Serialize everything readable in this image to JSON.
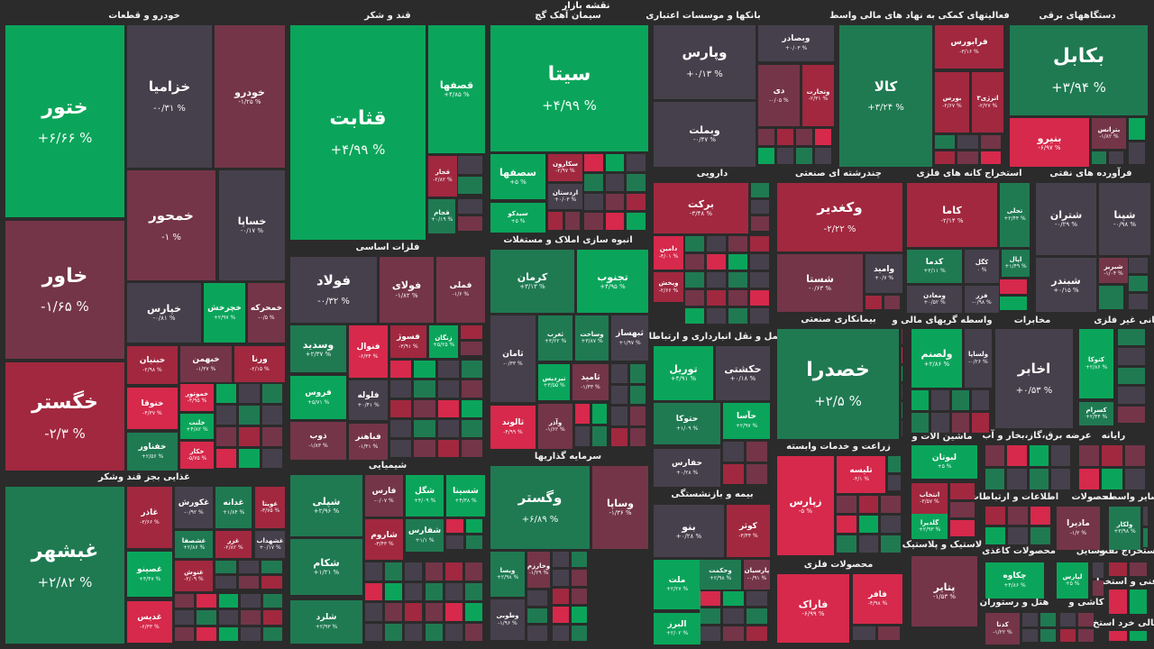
{
  "header": {
    "title": "نقشه بازار"
  },
  "colors": {
    "G": "#0aa55b",
    "g": "#1f7a52",
    "n": "#46404c",
    "m": "#743548",
    "r": "#a1283f",
    "R": "#d6294b"
  },
  "sectors": [
    "خودرو و قطعات",
    "قند و شکر",
    "سیمان آهک گچ",
    "بانکها و موسسات اعتباری",
    "فعالیتهای کمکی به نهاد های مالی واسط",
    "دستگاههای برقی",
    "فلزات اساسی",
    "انبوه سازی املاک و مستغلات",
    "دارویی",
    "چندرشته ای صنعتی",
    "استخراج کانه های فلزی",
    "فرآورده های نفتی",
    "حمل و نقل انبارداری و ارتباطات",
    "بیمانکاری صنعتی",
    "واسطه گریهای مالی و",
    "مخابرات",
    "کانی غیر فلزی",
    "زراعت و خدمات وابسته",
    "ماشین آلات و",
    "عرضه برق،گاز،بخار و آب",
    "رایانه",
    "بیمه و بازنشستگی",
    "اطلاعات و ارتباطات",
    "محصولات",
    "سایر واسطه",
    "محصولات فلزی",
    "لاستیک و پلاستیک",
    "محصولات کاغذی",
    "وسایل",
    "استخراج نفت",
    "فنی و استخرا",
    "هتل و رستوران",
    "کاشی و",
    "فعالی خرد استخ",
    "غذایی بجز قند وشکر",
    "شیمیایی",
    "سرمایه گذاریها"
  ],
  "tiles": [
    {
      "symbol": "ختور",
      "change": "+۶/۶۶ %",
      "c": "G"
    },
    {
      "symbol": "خزامیا",
      "change": "-۰/۳۱ %",
      "c": "n"
    },
    {
      "symbol": "خودرو",
      "change": "-۱/۲۵ %",
      "c": "m"
    },
    {
      "symbol": "خاور",
      "change": "-۱/۶۵ %",
      "c": "m"
    },
    {
      "symbol": "خمحور",
      "change": "-۱ %",
      "c": "m"
    },
    {
      "symbol": "خساپا",
      "change": "-۰/۱۷ %",
      "c": "n"
    },
    {
      "symbol": "خگستر",
      "change": "-۲/۳ %",
      "c": "r"
    },
    {
      "symbol": "خپارس",
      "change": "-۰/۸۱ %",
      "c": "n"
    },
    {
      "symbol": "خچرخش",
      "change": "+۲/۹۷ %",
      "c": "G"
    },
    {
      "symbol": "خمحرکه",
      "change": "-۰/۵ %",
      "c": "m"
    },
    {
      "symbol": "خبنیان",
      "change": "-۲/۹۸ %",
      "c": "r"
    },
    {
      "symbol": "خبهمن",
      "change": "-۱/۳۷ %",
      "c": "m"
    },
    {
      "symbol": "ورنا",
      "change": "-۲/۱۵ %",
      "c": "r"
    },
    {
      "symbol": "ختوقا",
      "change": "-۴/۳۷ %",
      "c": "R"
    },
    {
      "symbol": "خموتور",
      "change": "-۴/۹۵ %",
      "c": "R"
    },
    {
      "symbol": "خلنت",
      "change": "+۴/۸۲ %",
      "c": "G"
    },
    {
      "symbol": "خکار",
      "change": "-۵/۷۵ %",
      "c": "R"
    },
    {
      "symbol": "خفناور",
      "change": "+۲/۵۶ %",
      "c": "g"
    },
    {
      "symbol": "غبشهر",
      "change": "+۲/۸۲ %",
      "c": "g"
    },
    {
      "symbol": "غاذر",
      "change": "-۳/۶۶ %",
      "c": "r"
    },
    {
      "symbol": "غکورش",
      "change": "-۰/۹۲ %",
      "c": "n"
    },
    {
      "symbol": "غدانه",
      "change": "+۱/۸۴ %",
      "c": "g"
    },
    {
      "symbol": "غویتا",
      "change": "-۳/۷۵ %",
      "c": "r"
    },
    {
      "symbol": "غشصفا",
      "change": "+۲/۸۶ %",
      "c": "g"
    },
    {
      "symbol": "غزر",
      "change": "-۲/۸۲ %",
      "c": "r"
    },
    {
      "symbol": "غشهداب",
      "change": "+۰/۱۷ %",
      "c": "n"
    },
    {
      "symbol": "غصینو",
      "change": "+۴/۴۷ %",
      "c": "G"
    },
    {
      "symbol": "غنوش",
      "change": "-۲/۰۹ %",
      "c": "r"
    },
    {
      "symbol": "غدیس",
      "change": "-۶/۳۳ %",
      "c": "R"
    },
    {
      "symbol": "قثابت",
      "change": "+۴/۹۹ %",
      "c": "G"
    },
    {
      "symbol": "قصفها",
      "change": "+۴/۸۵ %",
      "c": "G"
    },
    {
      "symbol": "قجار",
      "change": "-۲/۸۲ %",
      "c": "r"
    },
    {
      "symbol": "قجام",
      "change": "+۰/۱۹ %",
      "c": "g"
    },
    {
      "symbol": "فولاد",
      "change": "-۰/۳۲ %",
      "c": "n"
    },
    {
      "symbol": "فولای",
      "change": "-۱/۸۲ %",
      "c": "m"
    },
    {
      "symbol": "فملی",
      "change": "-۱/۶ %",
      "c": "m"
    },
    {
      "symbol": "وسدید",
      "change": "+۲/۳۷ %",
      "c": "g"
    },
    {
      "symbol": "فنوال",
      "change": "-۶/۳۴ %",
      "c": "R"
    },
    {
      "symbol": "فسوژ",
      "change": "-۳/۹۱ %",
      "c": "r"
    },
    {
      "symbol": "زنگان",
      "change": "+۵/۲۵ %",
      "c": "G"
    },
    {
      "symbol": "فروس",
      "change": "+۵/۷۱ %",
      "c": "G"
    },
    {
      "symbol": "فلوله",
      "change": "+۰/۴۱ %",
      "c": "n"
    },
    {
      "symbol": "ذوب",
      "change": "-۱/۸۳ %",
      "c": "m"
    },
    {
      "symbol": "فباهنر",
      "change": "-۱/۴۱ %",
      "c": "m"
    },
    {
      "symbol": "شپلی",
      "change": "+۲/۹۶ %",
      "c": "g"
    },
    {
      "symbol": "فارس",
      "change": "-۰/۰۷ %",
      "c": "m"
    },
    {
      "symbol": "شگل",
      "change": "+۴/۰۹ %",
      "c": "G"
    },
    {
      "symbol": "شسینا",
      "change": "+۴/۳۸ %",
      "c": "G"
    },
    {
      "symbol": "شاروم",
      "change": "-۳/۴۳ %",
      "c": "r"
    },
    {
      "symbol": "شفارس",
      "change": "+۱/۱ %",
      "c": "g"
    },
    {
      "symbol": "شکام",
      "change": "+۱/۲۱ %",
      "c": "g"
    },
    {
      "symbol": "شلرد",
      "change": "+۲/۹۳ %",
      "c": "g"
    },
    {
      "symbol": "سیتا",
      "change": "+۴/۹۹ %",
      "c": "G"
    },
    {
      "symbol": "سصفها",
      "change": "+۵ %",
      "c": "G"
    },
    {
      "symbol": "سکارون",
      "change": "-۲/۹۷ %",
      "c": "r"
    },
    {
      "symbol": "اردستان",
      "change": "+۰/۰۳ %",
      "c": "n"
    },
    {
      "symbol": "سیدکو",
      "change": "+۵ %",
      "c": "G"
    },
    {
      "symbol": "کرمان",
      "change": "+۳/۱۳ %",
      "c": "g"
    },
    {
      "symbol": "تجنوب",
      "change": "+۴/۹۵ %",
      "c": "G"
    },
    {
      "symbol": "ثامان",
      "change": "-۰/۳۳ %",
      "c": "n"
    },
    {
      "symbol": "ثغرب",
      "change": "+۳/۲۲ %",
      "c": "g"
    },
    {
      "symbol": "وساخت",
      "change": "+۳/۸۷ %",
      "c": "g"
    },
    {
      "symbol": "ثبهساز",
      "change": "+۱/۹۷ %",
      "c": "n"
    },
    {
      "symbol": "تیردیس",
      "change": "+۳/۵۵ %",
      "c": "G"
    },
    {
      "symbol": "ثامید",
      "change": "-۱/۳۳ %",
      "c": "m"
    },
    {
      "symbol": "ثالوند",
      "change": "-۴/۹۹ %",
      "c": "R"
    },
    {
      "symbol": "وآذر",
      "change": "-۱/۶۲ %",
      "c": "m"
    },
    {
      "symbol": "وگستر",
      "change": "+۶/۸۹ %",
      "c": "g"
    },
    {
      "symbol": "وساپا",
      "change": "-۱/۳۶ %",
      "c": "m"
    },
    {
      "symbol": "ویسا",
      "change": "+۲/۹۸ %",
      "c": "g"
    },
    {
      "symbol": "وخارزم",
      "change": "-۱/۲۹ %",
      "c": "m"
    },
    {
      "symbol": "وطوبی",
      "change": "-۱/۹۶ %",
      "c": "n"
    },
    {
      "symbol": "وپارس",
      "change": "+۰/۱۳ %",
      "c": "n"
    },
    {
      "symbol": "وبملت",
      "change": "-۰/۴۷ %",
      "c": "n"
    },
    {
      "symbol": "وبصادر",
      "change": "+۰/۰۳ %",
      "c": "n"
    },
    {
      "symbol": "دی",
      "change": "-۰/۰۵ %",
      "c": "m"
    },
    {
      "symbol": "وتجارت",
      "change": "-۲/۳۱ %",
      "c": "r"
    },
    {
      "symbol": "کالا",
      "change": "+۳/۲۴ %",
      "c": "g"
    },
    {
      "symbol": "فرابورس",
      "change": "-۳/۱۶ %",
      "c": "r"
    },
    {
      "symbol": "بورس",
      "change": "-۲/۶۷ %",
      "c": "r"
    },
    {
      "symbol": "انرژی۳",
      "change": "-۲/۲۷ %",
      "c": "r"
    },
    {
      "symbol": "بکابل",
      "change": "+۳/۹۴ %",
      "c": "g"
    },
    {
      "symbol": "بنیرو",
      "change": "-۶/۹۷ %",
      "c": "R"
    },
    {
      "symbol": "بترانس",
      "change": "-۱/۸۲ %",
      "c": "m"
    },
    {
      "symbol": "برکت",
      "change": "-۳/۴۸ %",
      "c": "r"
    },
    {
      "symbol": "دامین",
      "change": "-۴/۰۱ %",
      "c": "R"
    },
    {
      "symbol": "ویخش",
      "change": "-۲/۶۶ %",
      "c": "r"
    },
    {
      "symbol": "وکغدیر",
      "change": "-۲/۲۲ %",
      "c": "r"
    },
    {
      "symbol": "شستا",
      "change": "-۰/۶۳ %",
      "c": "m"
    },
    {
      "symbol": "وامید",
      "change": "+۰/۷ %",
      "c": "n"
    },
    {
      "symbol": "کاما",
      "change": "-۲/۱۴ %",
      "c": "r"
    },
    {
      "symbol": "تجلی",
      "change": "+۲/۴۴ %",
      "c": "g"
    },
    {
      "symbol": "کدما",
      "change": "+۲/۱۱ %",
      "c": "g"
    },
    {
      "symbol": "کگل",
      "change": "۰ %",
      "c": "n"
    },
    {
      "symbol": "اپال",
      "change": "+۱/۴۹ %",
      "c": "g"
    },
    {
      "symbol": "ومعادن",
      "change": "+۰/۵۲ %",
      "c": "n"
    },
    {
      "symbol": "فزر",
      "change": "-۰/۹۸ %",
      "c": "n"
    },
    {
      "symbol": "شتران",
      "change": "-۰/۲۹ %",
      "c": "n"
    },
    {
      "symbol": "شپنا",
      "change": "-۰/۹۸ %",
      "c": "n"
    },
    {
      "symbol": "شبندر",
      "change": "+۰/۱۵ %",
      "c": "n"
    },
    {
      "symbol": "شبریز",
      "change": "-۱/۰۴ %",
      "c": "m"
    },
    {
      "symbol": "توریل",
      "change": "+۴/۹۱ %",
      "c": "G"
    },
    {
      "symbol": "حکشتی",
      "change": "+۰/۱۸ %",
      "c": "n"
    },
    {
      "symbol": "حتوکا",
      "change": "+۱/۰۹ %",
      "c": "g"
    },
    {
      "symbol": "حآسا",
      "change": "+۲/۹۷ %",
      "c": "G"
    },
    {
      "symbol": "حفارس",
      "change": "+۰/۲۸ %",
      "c": "n"
    },
    {
      "symbol": "بنو",
      "change": "+۰/۲۸ %",
      "c": "n"
    },
    {
      "symbol": "کوثر",
      "change": "-۳/۴۴ %",
      "c": "r"
    },
    {
      "symbol": "ملت",
      "change": "+۲/۲۷ %",
      "c": "G"
    },
    {
      "symbol": "وحکمت",
      "change": "+۲/۹۸ %",
      "c": "g"
    },
    {
      "symbol": "پارسیان",
      "change": "-۰/۹۱ %",
      "c": "m"
    },
    {
      "symbol": "البرز",
      "change": "+۲/۰۲ %",
      "c": "G"
    },
    {
      "symbol": "خصدرا",
      "change": "+۲/۵ %",
      "c": "g"
    },
    {
      "symbol": "زپارس",
      "change": "-۵ %",
      "c": "R"
    },
    {
      "symbol": "تلیسه",
      "change": "-۴/۱ %",
      "c": "R"
    },
    {
      "symbol": "فاراک",
      "change": "-۶/۹۹ %",
      "c": "R"
    },
    {
      "symbol": "فافر",
      "change": "-۴/۹۸ %",
      "c": "R"
    },
    {
      "symbol": "ولصنم",
      "change": "+۲/۸۶ %",
      "c": "G"
    },
    {
      "symbol": "ولساپا",
      "change": "-۰/۲۶ %",
      "c": "n"
    },
    {
      "symbol": "لبوتان",
      "change": "+۵ %",
      "c": "G"
    },
    {
      "symbol": "انتخاب",
      "change": "-۳/۵۷ %",
      "c": "r"
    },
    {
      "symbol": "گلدیرا",
      "change": "+۲/۹۳ %",
      "c": "G"
    },
    {
      "symbol": "پتایر",
      "change": "-۱/۵۳ %",
      "c": "m"
    },
    {
      "symbol": "اخابر",
      "change": "+۰/۵۳ %",
      "c": "n"
    },
    {
      "symbol": "کتوکا",
      "change": "+۲/۸۶ %",
      "c": "G"
    },
    {
      "symbol": "کسرام",
      "change": "+۲/۴۴ %",
      "c": "g"
    },
    {
      "symbol": "مادیرا",
      "change": "-۱/۲ %",
      "c": "m"
    },
    {
      "symbol": "ولکار",
      "change": "+۳/۹۸ %",
      "c": "g"
    },
    {
      "symbol": "چکاوه",
      "change": "+۴/۸۶ %",
      "c": "G"
    },
    {
      "symbol": "لپارس",
      "change": "+۵ %",
      "c": "G"
    },
    {
      "symbol": "کدنا",
      "change": "-۱/۲۲ %",
      "c": "m"
    }
  ]
}
